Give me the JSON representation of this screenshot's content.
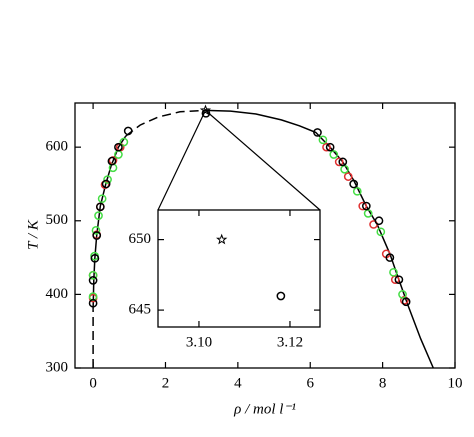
{
  "chart_data": [
    {
      "type": "scatter",
      "xlabel": "ρ / mol l⁻¹",
      "ylabel": "T / K",
      "xlim": [
        -0.5,
        10
      ],
      "ylim": [
        300,
        660
      ],
      "xticks": [
        0,
        2,
        4,
        6,
        8,
        10
      ],
      "yticks": [
        300,
        400,
        500,
        600
      ],
      "lines": [
        {
          "style": "dashed",
          "color": "#000000",
          "x": [
            0,
            0
          ],
          "values": [
            300,
            380
          ]
        },
        {
          "style": "solid",
          "color": "#000000",
          "x": [
            0,
            0.02,
            0.05,
            0.1,
            0.2,
            0.35,
            0.5,
            0.7,
            0.9
          ],
          "values": [
            380,
            420,
            450,
            480,
            520,
            550,
            575,
            600,
            615
          ]
        },
        {
          "style": "dashed",
          "color": "#000000",
          "x": [
            0.9,
            1.3,
            1.8,
            2.4,
            3.1
          ],
          "values": [
            615,
            630,
            641,
            648,
            650
          ]
        },
        {
          "style": "solid",
          "color": "#000000",
          "x": [
            3.1,
            3.8,
            4.5,
            5.2,
            5.7,
            6.15,
            6.55,
            6.9,
            7.2,
            7.55,
            7.85,
            8.2,
            8.45,
            8.7,
            9.05,
            9.4
          ],
          "values": [
            650,
            649,
            645,
            637,
            629,
            620,
            600,
            580,
            555,
            520,
            495,
            455,
            420,
            385,
            340,
            300
          ]
        }
      ],
      "series": [
        {
          "marker": "circle",
          "color": "#e03030",
          "x": [
            0,
            0,
            0.1,
            0.2,
            0.33,
            0.55,
            0.75,
            6.45,
            6.8,
            7.05,
            7.45,
            7.75,
            8.1,
            8.35,
            8.6
          ],
          "values": [
            395,
            426,
            481,
            519,
            549,
            582,
            600,
            600,
            580,
            560,
            520,
            495,
            455,
            420,
            392
          ]
        },
        {
          "marker": "circle",
          "color": "#44dd44",
          "x": [
            0,
            0,
            0.04,
            0.08,
            0.15,
            0.25,
            0.4,
            0.55,
            0.7,
            0.85,
            6.35,
            6.65,
            6.95,
            7.3,
            7.6,
            7.95,
            8.3,
            8.55
          ],
          "values": [
            397,
            426,
            452,
            487,
            507,
            530,
            556,
            572,
            590,
            607,
            610,
            590,
            570,
            540,
            510,
            485,
            430,
            400
          ]
        },
        {
          "marker": "circle",
          "color": "#000000",
          "x": [
            0,
            0,
            0.05,
            0.1,
            0.2,
            0.36,
            0.52,
            0.7,
            0.97,
            6.2,
            6.55,
            6.9,
            7.2,
            7.55,
            7.9,
            8.2,
            8.45,
            8.65
          ],
          "values": [
            388,
            419,
            449,
            480,
            519,
            550,
            581,
            600,
            622,
            620,
            600,
            580,
            550,
            520,
            500,
            450,
            420,
            390
          ]
        },
        {
          "marker": "circle",
          "color": "#000000",
          "x": [
            3.118
          ],
          "values": [
            646
          ]
        },
        {
          "marker": "star",
          "color": "#000000",
          "x": [
            3.105
          ],
          "values": [
            650
          ]
        }
      ]
    },
    {
      "type": "scatter",
      "xlim": [
        3.091,
        3.1266
      ],
      "ylim": [
        643.8,
        652.1
      ],
      "xticks": [
        {
          "value": 3.1,
          "label": "3.10"
        },
        3.12
      ],
      "yticks": [
        645,
        650
      ],
      "series": [
        {
          "marker": "star",
          "color": "#000000",
          "x": [
            3.105
          ],
          "values": [
            650
          ]
        },
        {
          "marker": "circle",
          "color": "#000000",
          "x": [
            3.118
          ],
          "values": [
            646
          ]
        }
      ]
    }
  ]
}
